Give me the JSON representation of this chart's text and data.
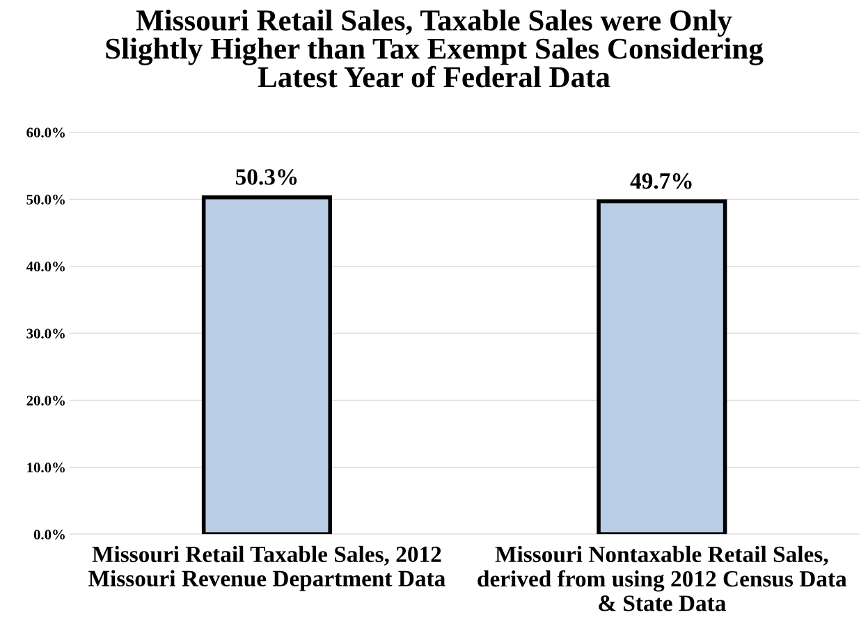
{
  "chart_data": {
    "type": "bar",
    "title": "Missouri Retail Sales, Taxable Sales were Only\nSlightly Higher than Tax Exempt Sales Considering\nLatest Year of Federal Data",
    "categories": [
      "Missouri Retail Taxable Sales, 2012\nMissouri Revenue Department Data",
      "Missouri Nontaxable Retail Sales,\nderived from using 2012 Census Data\n& State Data"
    ],
    "values": [
      50.3,
      49.7
    ],
    "value_labels": [
      "50.3%",
      "49.7%"
    ],
    "color": "#b9cde5",
    "ylim": [
      0,
      60
    ],
    "yticks": [
      {
        "value": 0,
        "label": "0.0%"
      },
      {
        "value": 10,
        "label": "10.0%"
      },
      {
        "value": 20,
        "label": "20.0%"
      },
      {
        "value": 30,
        "label": "30.0%"
      },
      {
        "value": 40,
        "label": "40.0%"
      },
      {
        "value": 50,
        "label": "50.0%"
      },
      {
        "value": 60,
        "label": "60.0%"
      }
    ],
    "grid": "y"
  }
}
